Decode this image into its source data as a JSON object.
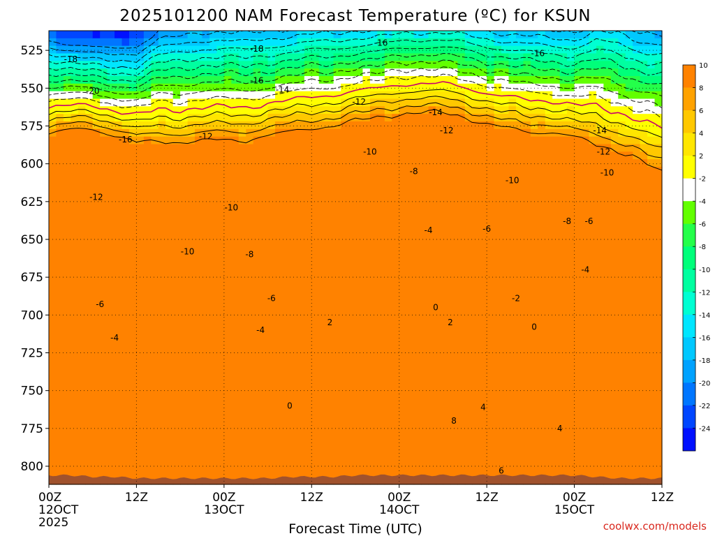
{
  "chart_data": {
    "type": "heatmap",
    "title": "2025101200 NAM Forecast Temperature (ºC) for KSUN",
    "xlabel": "Forecast Time (UTC)",
    "ylabel": "",
    "x_range_hours": [
      0,
      84
    ],
    "y_range_hpa": [
      512,
      812
    ],
    "y_inverted": true,
    "yticks": [
      {
        "v": 525,
        "label": "525"
      },
      {
        "v": 550,
        "label": "550"
      },
      {
        "v": 575,
        "label": "575"
      },
      {
        "v": 600,
        "label": "600"
      },
      {
        "v": 625,
        "label": "625"
      },
      {
        "v": 650,
        "label": "650"
      },
      {
        "v": 675,
        "label": "675"
      },
      {
        "v": 700,
        "label": "700"
      },
      {
        "v": 725,
        "label": "725"
      },
      {
        "v": 750,
        "label": "750"
      },
      {
        "v": 775,
        "label": "775"
      },
      {
        "v": 800,
        "label": "800"
      }
    ],
    "xticks": [
      {
        "h": 0,
        "label": "00Z",
        "sub": "12OCT",
        "sub2": "2025"
      },
      {
        "h": 12,
        "label": "12Z",
        "sub": "",
        "sub2": ""
      },
      {
        "h": 24,
        "label": "00Z",
        "sub": "13OCT",
        "sub2": ""
      },
      {
        "h": 36,
        "label": "12Z",
        "sub": "",
        "sub2": ""
      },
      {
        "h": 48,
        "label": "00Z",
        "sub": "14OCT",
        "sub2": ""
      },
      {
        "h": 60,
        "label": "12Z",
        "sub": "",
        "sub2": ""
      },
      {
        "h": 72,
        "label": "00Z",
        "sub": "15OCT",
        "sub2": ""
      },
      {
        "h": 84,
        "label": "12Z",
        "sub": "",
        "sub2": ""
      }
    ],
    "grid": true,
    "colorbar": {
      "placement": "right",
      "levels": [
        -26,
        -24,
        -22,
        -20,
        -18,
        -16,
        -14,
        -12,
        -10,
        -8,
        -6,
        -4,
        -2,
        2,
        4,
        6,
        8,
        10,
        12
      ],
      "labels": [
        "-24",
        "-22",
        "-20",
        "-18",
        "-16",
        "-14",
        "-12",
        "-10",
        "-8",
        "-6",
        "-4",
        "-2",
        "2",
        "4",
        "6",
        "8",
        "10"
      ],
      "colors": [
        "#0010ff",
        "#0046ff",
        "#0076ff",
        "#00a2ff",
        "#00c8ff",
        "#00e6ff",
        "#00ffd2",
        "#00ffa0",
        "#00ff7a",
        "#24ff4a",
        "#62ff00",
        "#ffffff",
        "#ffff00",
        "#ffe600",
        "#ffc800",
        "#ffa200",
        "#ff8200"
      ]
    },
    "terrain_color": "#a0522d",
    "freezing_line_color": "#c8006e",
    "contour_levels": [
      -20,
      -18,
      -16,
      -14,
      -12,
      -10,
      -8,
      -6,
      -4,
      -2,
      0,
      2,
      4,
      6,
      8
    ],
    "columns": [
      {
        "h": 0,
        "t": -19.2,
        "g": 0.45,
        "sfc": 806
      },
      {
        "h": 3,
        "t": -20.6,
        "g": 0.5,
        "sfc": 806
      },
      {
        "h": 6,
        "t": -21.6,
        "g": 0.52,
        "sfc": 807
      },
      {
        "h": 9,
        "t": -21.6,
        "g": 0.48,
        "sfc": 807
      },
      {
        "h": 12,
        "t": -21.0,
        "g": 0.44,
        "sfc": 808
      },
      {
        "h": 15,
        "t": -17.2,
        "g": 0.39,
        "sfc": 808
      },
      {
        "h": 18,
        "t": -16.4,
        "g": 0.37,
        "sfc": 808
      },
      {
        "h": 21,
        "t": -15.4,
        "g": 0.36,
        "sfc": 808
      },
      {
        "h": 24,
        "t": -15.4,
        "g": 0.365,
        "sfc": 808
      },
      {
        "h": 27,
        "t": -15.8,
        "g": 0.37,
        "sfc": 808
      },
      {
        "h": 30,
        "t": -15.0,
        "g": 0.375,
        "sfc": 808
      },
      {
        "h": 33,
        "t": -14.4,
        "g": 0.38,
        "sfc": 807
      },
      {
        "h": 36,
        "t": -13.8,
        "g": 0.385,
        "sfc": 807
      },
      {
        "h": 39,
        "t": -13.6,
        "g": 0.395,
        "sfc": 807
      },
      {
        "h": 42,
        "t": -12.8,
        "g": 0.405,
        "sfc": 806
      },
      {
        "h": 45,
        "t": -12.4,
        "g": 0.41,
        "sfc": 806
      },
      {
        "h": 48,
        "t": -11.6,
        "g": 0.415,
        "sfc": 806
      },
      {
        "h": 51,
        "t": -11.2,
        "g": 0.42,
        "sfc": 806
      },
      {
        "h": 54,
        "t": -11.2,
        "g": 0.415,
        "sfc": 806
      },
      {
        "h": 57,
        "t": -12.0,
        "g": 0.405,
        "sfc": 806
      },
      {
        "h": 60,
        "t": -13.0,
        "g": 0.39,
        "sfc": 806
      },
      {
        "h": 63,
        "t": -13.8,
        "g": 0.385,
        "sfc": 806
      },
      {
        "h": 66,
        "t": -14.4,
        "g": 0.38,
        "sfc": 806
      },
      {
        "h": 69,
        "t": -14.8,
        "g": 0.385,
        "sfc": 806
      },
      {
        "h": 72,
        "t": -15.2,
        "g": 0.37,
        "sfc": 806
      },
      {
        "h": 75,
        "t": -13.6,
        "g": 0.325,
        "sfc": 807
      },
      {
        "h": 78,
        "t": -14.2,
        "g": 0.31,
        "sfc": 808
      },
      {
        "h": 81,
        "t": -15.6,
        "g": 0.3,
        "sfc": 808
      },
      {
        "h": 84,
        "t": -16.4,
        "g": 0.29,
        "sfc": 808
      }
    ],
    "contour_labels": [
      {
        "h": 3,
        "p": 531,
        "text": "-18"
      },
      {
        "h": 28.5,
        "p": 524,
        "text": "-18"
      },
      {
        "h": 6,
        "p": 552,
        "text": "-20"
      },
      {
        "h": 10.5,
        "p": 584,
        "text": "-16"
      },
      {
        "h": 28.5,
        "p": 545,
        "text": "-16"
      },
      {
        "h": 45.5,
        "p": 520,
        "text": "-16"
      },
      {
        "h": 67,
        "p": 527,
        "text": "-16"
      },
      {
        "h": 32,
        "p": 551,
        "text": "-14"
      },
      {
        "h": 53,
        "p": 566,
        "text": "-14"
      },
      {
        "h": 75.5,
        "p": 578,
        "text": "-14"
      },
      {
        "h": 21.5,
        "p": 582,
        "text": "-12"
      },
      {
        "h": 42.5,
        "p": 559,
        "text": "-12"
      },
      {
        "h": 54.5,
        "p": 578,
        "text": "-12"
      },
      {
        "h": 76,
        "p": 592,
        "text": "-12"
      },
      {
        "h": 6.5,
        "p": 622,
        "text": "-12"
      },
      {
        "h": 25,
        "p": 629,
        "text": "-10"
      },
      {
        "h": 19,
        "p": 658,
        "text": "-10"
      },
      {
        "h": 44,
        "p": 592,
        "text": "-10"
      },
      {
        "h": 63.5,
        "p": 611,
        "text": "-10"
      },
      {
        "h": 76.5,
        "p": 606,
        "text": "-10"
      },
      {
        "h": 27.5,
        "p": 660,
        "text": "-8"
      },
      {
        "h": 50,
        "p": 605,
        "text": "-8"
      },
      {
        "h": 71,
        "p": 638,
        "text": "-8"
      },
      {
        "h": 74,
        "p": 638,
        "text": "-6"
      },
      {
        "h": 7,
        "p": 693,
        "text": "-6"
      },
      {
        "h": 30.5,
        "p": 689,
        "text": "-6"
      },
      {
        "h": 60,
        "p": 643,
        "text": "-6"
      },
      {
        "h": 9,
        "p": 715,
        "text": "-4"
      },
      {
        "h": 29,
        "p": 710,
        "text": "-4"
      },
      {
        "h": 52,
        "p": 644,
        "text": "-4"
      },
      {
        "h": 73.5,
        "p": 670,
        "text": "-4"
      },
      {
        "h": 64,
        "p": 689,
        "text": "-2"
      },
      {
        "h": 38.5,
        "p": 705,
        "text": "2"
      },
      {
        "h": 55,
        "p": 705,
        "text": "2"
      },
      {
        "h": 33,
        "p": 760,
        "text": "0"
      },
      {
        "h": 53,
        "p": 695,
        "text": "0"
      },
      {
        "h": 66.5,
        "p": 708,
        "text": "0"
      },
      {
        "h": 59.5,
        "p": 761,
        "text": "4"
      },
      {
        "h": 70,
        "p": 775,
        "text": "4"
      },
      {
        "h": 55.5,
        "p": 770,
        "text": "8"
      },
      {
        "h": 62,
        "p": 803,
        "text": "6"
      }
    ],
    "credit": "coolwx.com/models"
  }
}
